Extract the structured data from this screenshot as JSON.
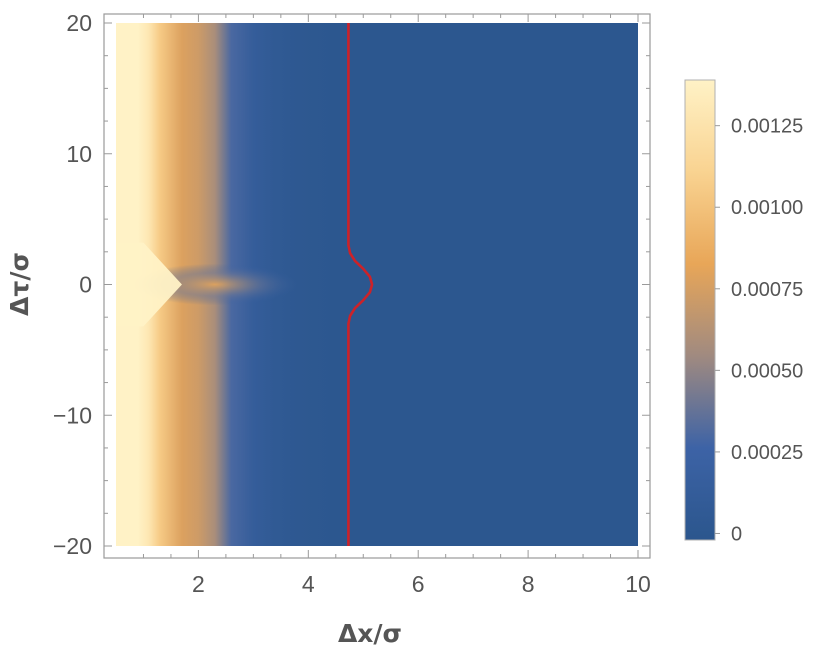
{
  "chart_data": {
    "type": "heatmap",
    "title": "",
    "xlabel": "Δx/σ",
    "ylabel": "Δτ/σ",
    "xlim": [
      0.5,
      10
    ],
    "ylim": [
      -20,
      20
    ],
    "x_ticks": [
      {
        "value": 2,
        "label": "2"
      },
      {
        "value": 4,
        "label": "4"
      },
      {
        "value": 6,
        "label": "6"
      },
      {
        "value": 8,
        "label": "8"
      },
      {
        "value": 10,
        "label": "10"
      }
    ],
    "y_ticks": [
      {
        "value": 20,
        "label": "20"
      },
      {
        "value": 10,
        "label": "10"
      },
      {
        "value": 0,
        "label": "0"
      },
      {
        "value": -10,
        "label": "−10"
      },
      {
        "value": -20,
        "label": "−20"
      }
    ],
    "colorbar": {
      "range": [
        -2e-05,
        0.00139
      ],
      "ticks": [
        {
          "value": 0.00125,
          "label": "0.00125"
        },
        {
          "value": 0.001,
          "label": "0.00100"
        },
        {
          "value": 0.00075,
          "label": "0.00075"
        },
        {
          "value": 0.0005,
          "label": "0.00050"
        },
        {
          "value": 0.00025,
          "label": "0.00025"
        },
        {
          "value": 0,
          "label": "0"
        }
      ],
      "colors": [
        "#2b568d",
        "#3d63a6",
        "#a08a80",
        "#e8a658",
        "#f9d391",
        "#fff2c6"
      ]
    },
    "field_profile": {
      "description_free_values": true,
      "x": [
        0.5,
        0.9,
        1.1,
        1.3,
        1.7,
        2.0,
        2.3,
        2.6,
        3.0,
        3.4,
        3.8,
        4.5,
        10
      ],
      "values": [
        0.00139,
        0.00139,
        0.00128,
        0.00105,
        0.00078,
        0.00072,
        0.00058,
        0.0003,
        0.00013,
        6e-05,
        2e-05,
        0.0,
        0.0
      ]
    },
    "contour_line": {
      "color": "#cc2229",
      "level": 0,
      "points": [
        [
          4.73,
          -20
        ],
        [
          4.73,
          -3.0
        ],
        [
          4.76,
          -2.4
        ],
        [
          4.85,
          -1.8
        ],
        [
          5.0,
          -1.2
        ],
        [
          5.12,
          -0.6
        ],
        [
          5.16,
          0
        ],
        [
          5.12,
          0.6
        ],
        [
          5.0,
          1.2
        ],
        [
          4.85,
          1.8
        ],
        [
          4.76,
          2.4
        ],
        [
          4.73,
          3.0
        ],
        [
          4.73,
          20
        ]
      ]
    }
  }
}
